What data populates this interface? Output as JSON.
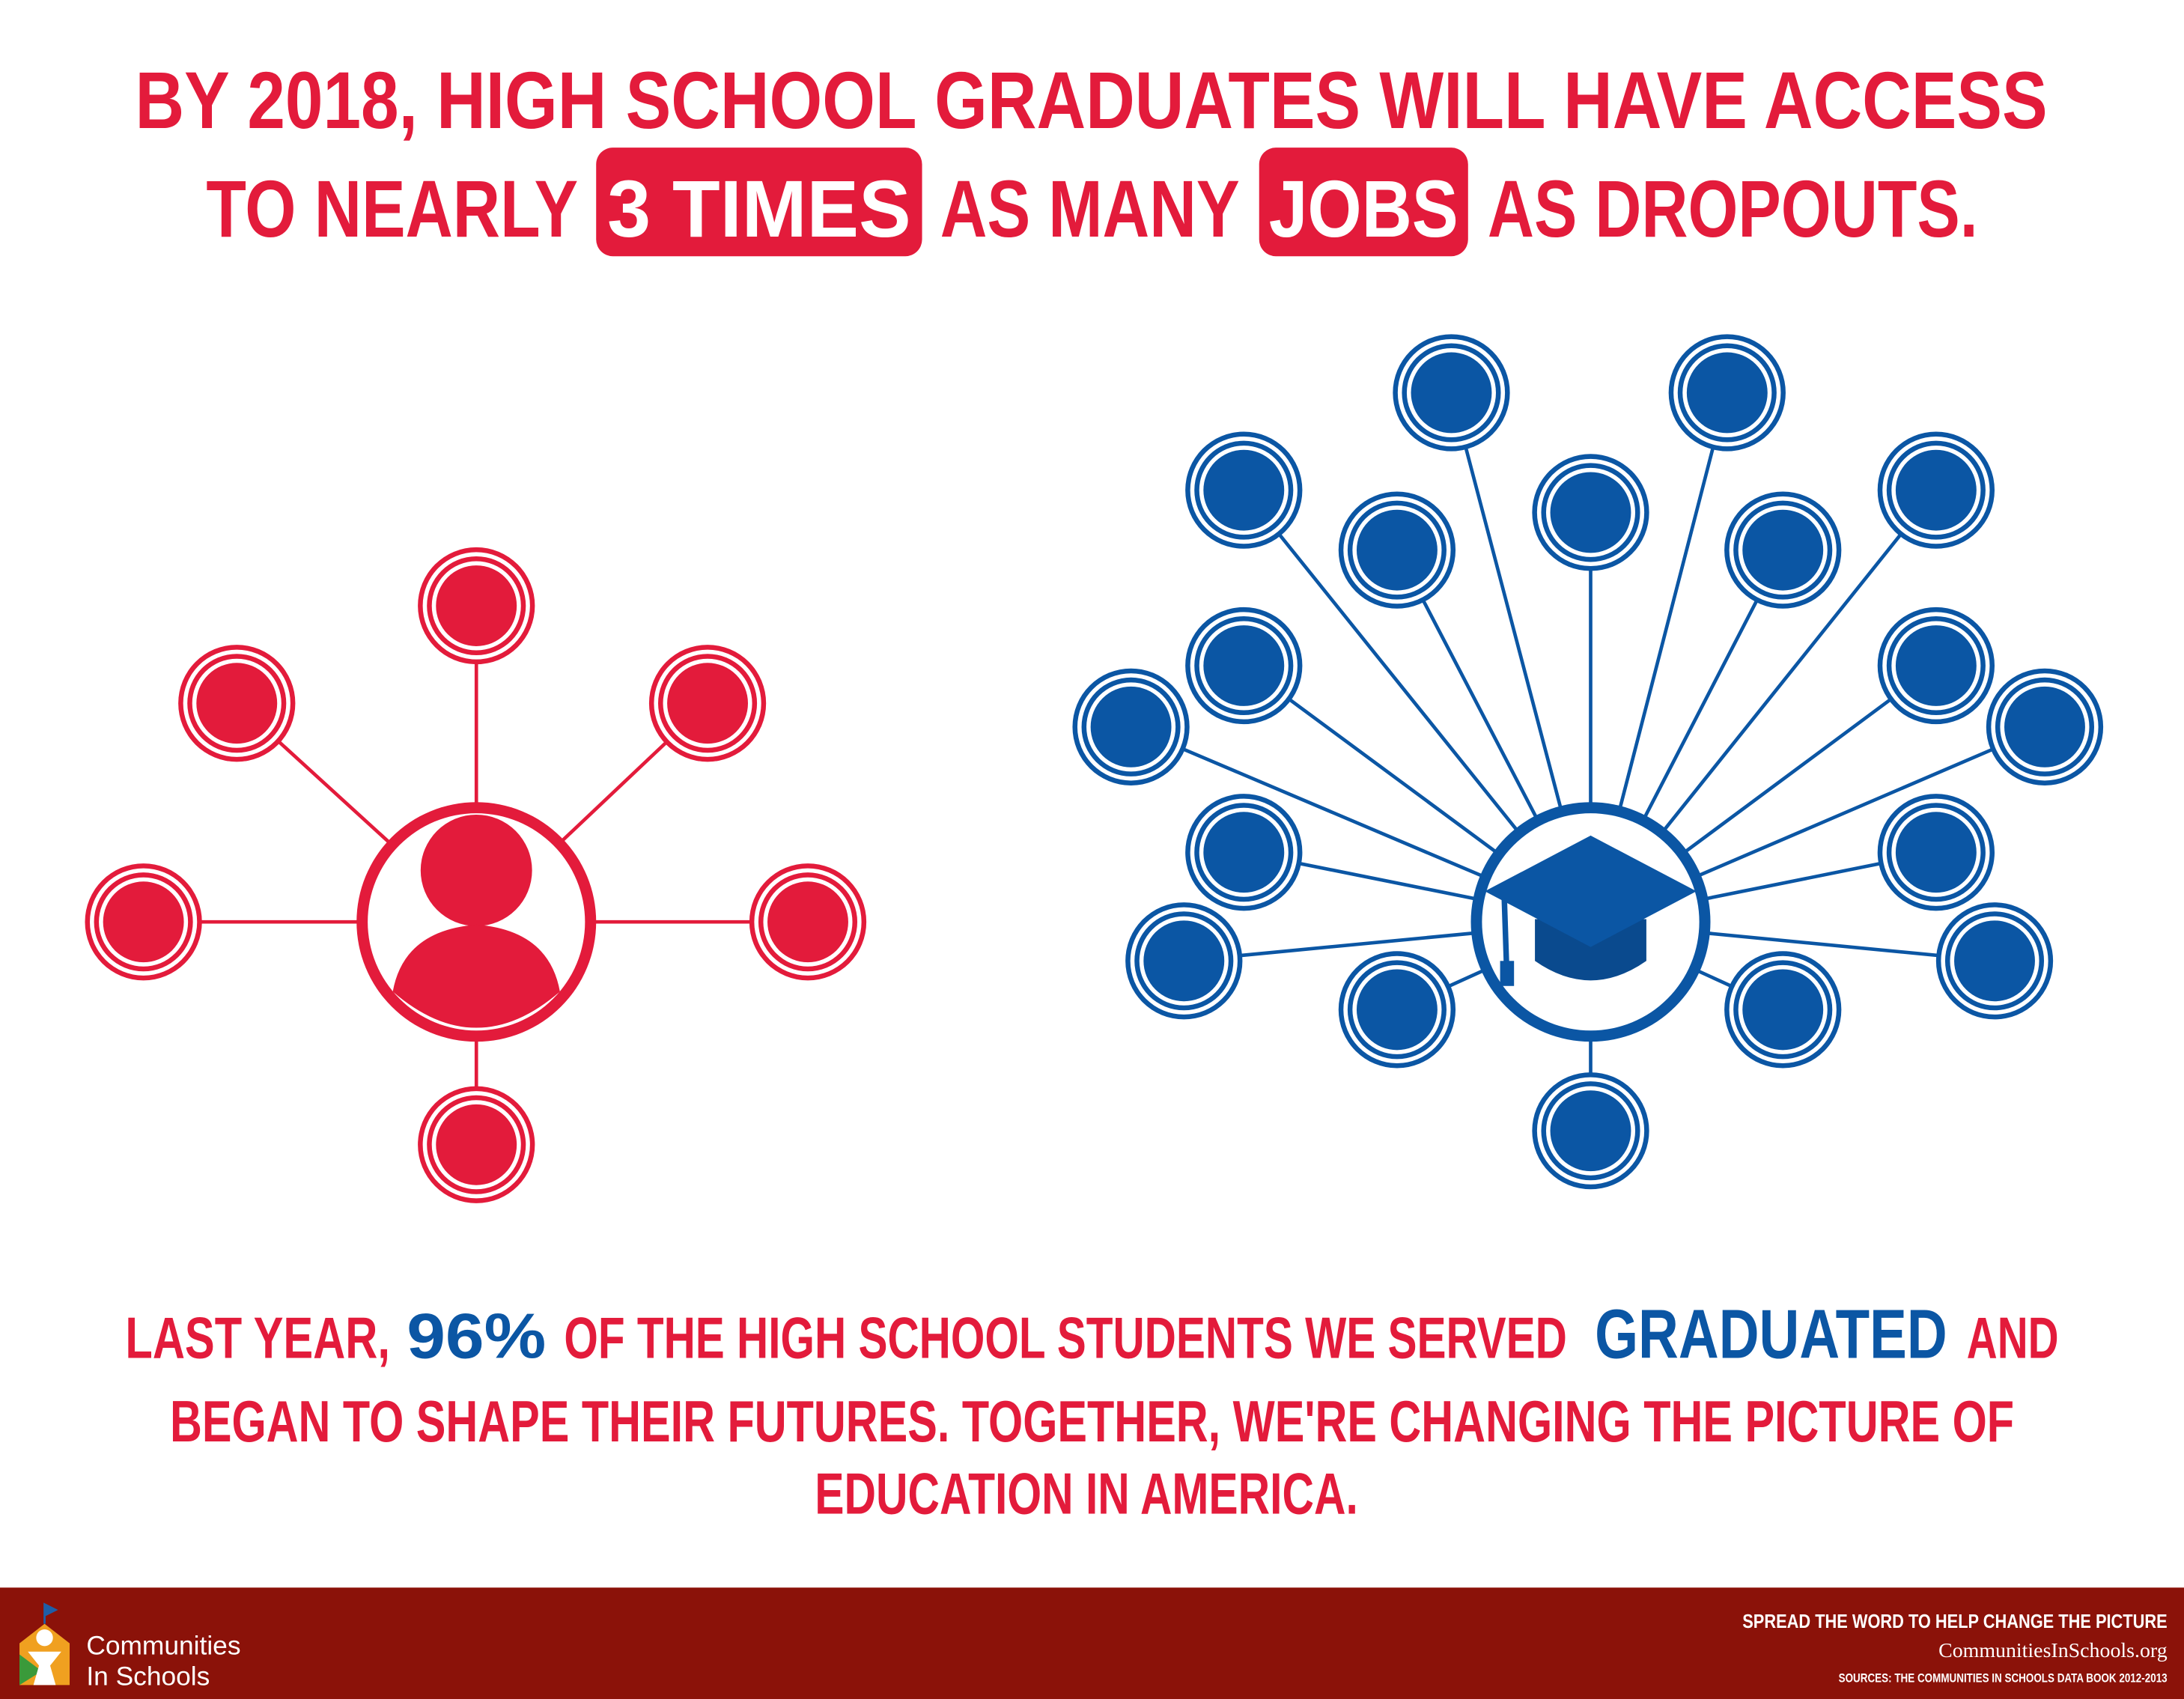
{
  "header": {
    "line1": "BY 2018, HIGH SCHOOL GRADUATES WILL HAVE ACCESS",
    "line2_a": "TO NEARLY",
    "highlight1": "3 TIMES",
    "line2_b": "AS MANY",
    "highlight2": "JOBS",
    "line2_c": "AS DROPOUTS."
  },
  "message": {
    "a": "LAST YEAR,",
    "stat": "96%",
    "b": "OF THE HIGH SCHOOL STUDENTS WE SERVED",
    "graduated": "GRADUATED",
    "c": "AND",
    "line2": "BEGAN TO SHAPE THEIR FUTURES.  TOGETHER, WE'RE CHANGING THE PICTURE OF",
    "line3": "EDUCATION IN AMERICA."
  },
  "footer": {
    "logo_line1": "Communities",
    "logo_line2": "In Schools",
    "cta": "SPREAD THE WORD TO HELP CHANGE THE PICTURE",
    "url": "CommunitiesInSchools.org",
    "sources": "SOURCES: THE COMMUNITIES IN SCHOOLS DATA BOOK 2012-2013"
  }
}
